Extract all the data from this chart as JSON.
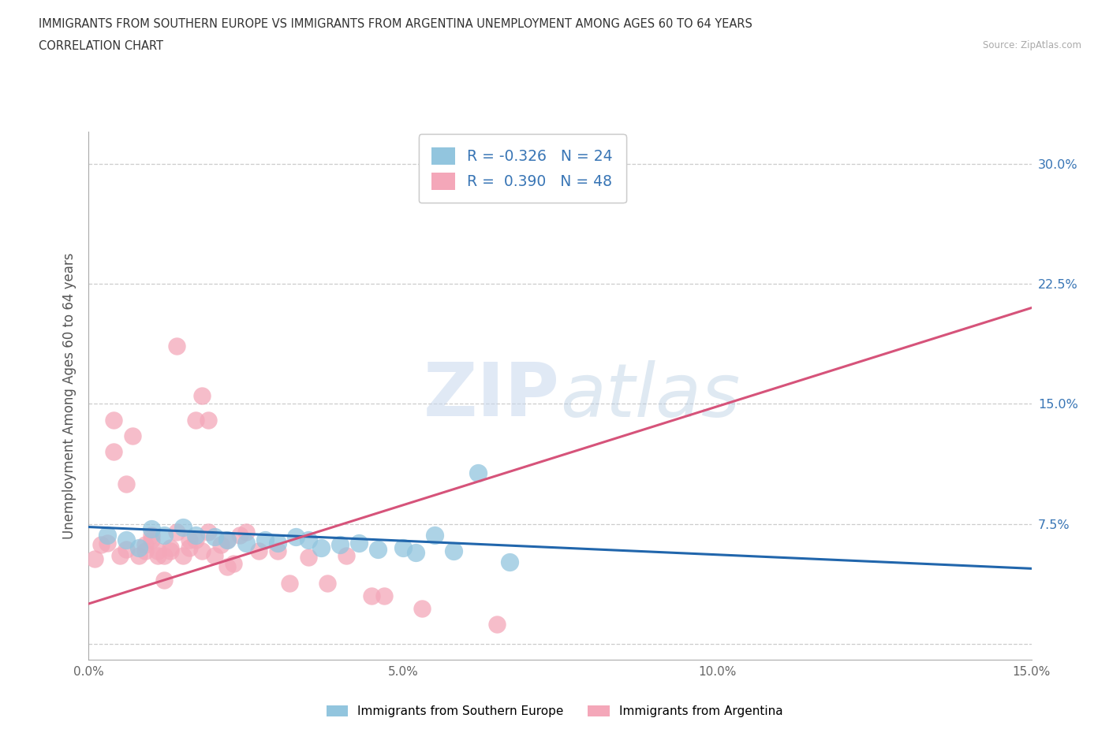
{
  "title_line1": "IMMIGRANTS FROM SOUTHERN EUROPE VS IMMIGRANTS FROM ARGENTINA UNEMPLOYMENT AMONG AGES 60 TO 64 YEARS",
  "title_line2": "CORRELATION CHART",
  "source_text": "Source: ZipAtlas.com",
  "ylabel": "Unemployment Among Ages 60 to 64 years",
  "watermark_zip": "ZIP",
  "watermark_atlas": "atlas",
  "xlim": [
    0.0,
    0.15
  ],
  "ylim": [
    -0.01,
    0.32
  ],
  "yticks": [
    0.0,
    0.075,
    0.15,
    0.225,
    0.3
  ],
  "ytick_labels": [
    "",
    "7.5%",
    "15.0%",
    "22.5%",
    "30.0%"
  ],
  "xticks": [
    0.0,
    0.05,
    0.1,
    0.15
  ],
  "xtick_labels": [
    "0.0%",
    "5.0%",
    "10.0%",
    "15.0%"
  ],
  "legend_r1": "R = -0.326",
  "legend_n1": "N = 24",
  "legend_r2": "R =  0.390",
  "legend_n2": "N = 48",
  "blue_color": "#92c5de",
  "pink_color": "#f4a7b9",
  "blue_line_color": "#2166ac",
  "pink_line_color": "#d6537a",
  "tick_color": "#3875b5",
  "blue_scatter": [
    [
      0.003,
      0.068
    ],
    [
      0.006,
      0.065
    ],
    [
      0.008,
      0.06
    ],
    [
      0.01,
      0.072
    ],
    [
      0.012,
      0.068
    ],
    [
      0.015,
      0.073
    ],
    [
      0.017,
      0.068
    ],
    [
      0.02,
      0.067
    ],
    [
      0.022,
      0.065
    ],
    [
      0.025,
      0.063
    ],
    [
      0.028,
      0.065
    ],
    [
      0.03,
      0.063
    ],
    [
      0.033,
      0.067
    ],
    [
      0.035,
      0.065
    ],
    [
      0.037,
      0.06
    ],
    [
      0.04,
      0.062
    ],
    [
      0.043,
      0.063
    ],
    [
      0.046,
      0.059
    ],
    [
      0.05,
      0.06
    ],
    [
      0.052,
      0.057
    ],
    [
      0.055,
      0.068
    ],
    [
      0.058,
      0.058
    ],
    [
      0.062,
      0.107
    ],
    [
      0.067,
      0.051
    ]
  ],
  "pink_scatter": [
    [
      0.001,
      0.053
    ],
    [
      0.002,
      0.062
    ],
    [
      0.003,
      0.063
    ],
    [
      0.004,
      0.12
    ],
    [
      0.004,
      0.14
    ],
    [
      0.005,
      0.055
    ],
    [
      0.006,
      0.1
    ],
    [
      0.006,
      0.059
    ],
    [
      0.007,
      0.13
    ],
    [
      0.008,
      0.055
    ],
    [
      0.009,
      0.058
    ],
    [
      0.009,
      0.062
    ],
    [
      0.01,
      0.065
    ],
    [
      0.01,
      0.068
    ],
    [
      0.011,
      0.055
    ],
    [
      0.011,
      0.058
    ],
    [
      0.012,
      0.04
    ],
    [
      0.012,
      0.055
    ],
    [
      0.013,
      0.058
    ],
    [
      0.013,
      0.06
    ],
    [
      0.014,
      0.186
    ],
    [
      0.014,
      0.07
    ],
    [
      0.015,
      0.055
    ],
    [
      0.016,
      0.065
    ],
    [
      0.016,
      0.06
    ],
    [
      0.017,
      0.065
    ],
    [
      0.017,
      0.14
    ],
    [
      0.018,
      0.155
    ],
    [
      0.018,
      0.058
    ],
    [
      0.019,
      0.14
    ],
    [
      0.019,
      0.07
    ],
    [
      0.02,
      0.055
    ],
    [
      0.021,
      0.062
    ],
    [
      0.022,
      0.048
    ],
    [
      0.022,
      0.065
    ],
    [
      0.023,
      0.05
    ],
    [
      0.024,
      0.068
    ],
    [
      0.025,
      0.07
    ],
    [
      0.027,
      0.058
    ],
    [
      0.03,
      0.058
    ],
    [
      0.032,
      0.038
    ],
    [
      0.035,
      0.054
    ],
    [
      0.038,
      0.038
    ],
    [
      0.041,
      0.055
    ],
    [
      0.045,
      0.03
    ],
    [
      0.047,
      0.03
    ],
    [
      0.053,
      0.022
    ],
    [
      0.065,
      0.012
    ]
  ],
  "blue_trend": [
    0.0,
    0.073,
    0.15,
    0.047
  ],
  "pink_trend": [
    0.0,
    0.025,
    0.15,
    0.21
  ],
  "grid_color": "#cccccc",
  "bg_color": "#ffffff"
}
